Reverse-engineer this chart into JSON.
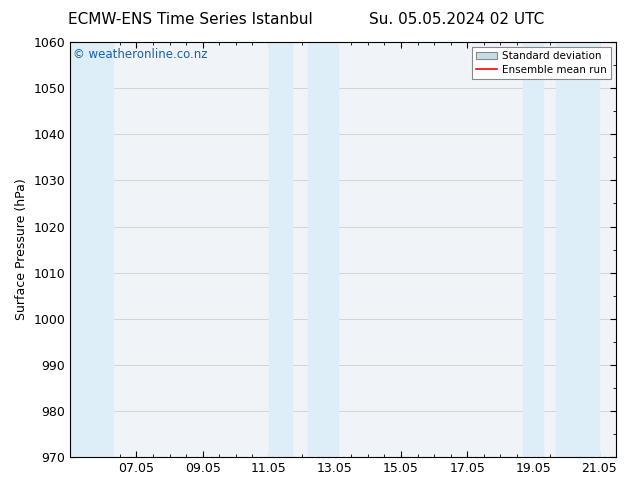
{
  "title_left": "ECMW-ENS Time Series Istanbul",
  "title_right": "Su. 05.05.2024 02 UTC",
  "ylabel": "Surface Pressure (hPa)",
  "ylim": [
    970,
    1060
  ],
  "yticks": [
    970,
    980,
    990,
    1000,
    1010,
    1020,
    1030,
    1040,
    1050,
    1060
  ],
  "xlim_start": 5.0,
  "xlim_end": 21.5,
  "xtick_labels": [
    "07.05",
    "09.05",
    "11.05",
    "13.05",
    "15.05",
    "17.05",
    "19.05",
    "21.05"
  ],
  "xtick_positions": [
    7.0,
    9.0,
    11.0,
    13.0,
    15.0,
    17.0,
    19.0,
    21.0
  ],
  "shaded_bands": [
    {
      "x_start": 5.0,
      "x_end": 6.3,
      "color": "#ddeef8"
    },
    {
      "x_start": 11.0,
      "x_end": 11.7,
      "color": "#ddeef8"
    },
    {
      "x_start": 12.2,
      "x_end": 13.1,
      "color": "#ddeef8"
    },
    {
      "x_start": 18.7,
      "x_end": 19.3,
      "color": "#ddeef8"
    },
    {
      "x_start": 19.7,
      "x_end": 21.0,
      "color": "#ddeef8"
    }
  ],
  "mean_line_color": "#ff0000",
  "std_band_color": "#c8dce8",
  "watermark": "© weatheronline.co.nz",
  "watermark_color": "#1a5fa8",
  "bg_color": "#ffffff",
  "plot_bg_color": "#f0f4f8",
  "grid_color": "#d0d0d0",
  "tick_color": "#000000",
  "spine_color": "#000000",
  "title_fontsize": 11,
  "label_fontsize": 9,
  "watermark_fontsize": 8.5,
  "legend_fontsize": 7.5
}
